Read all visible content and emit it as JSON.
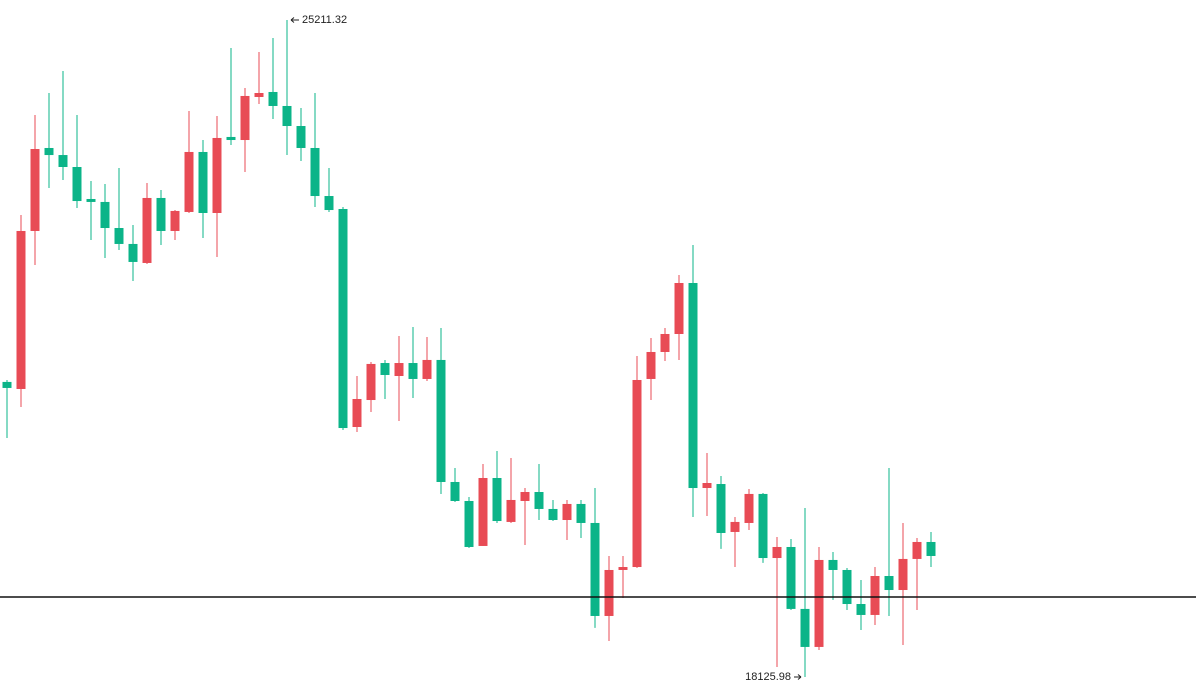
{
  "chart_data": {
    "type": "candlestick",
    "open": [
      21308,
      21232,
      22936,
      23831,
      23755,
      23626,
      23281,
      23249,
      22968,
      22796,
      22591,
      23292,
      22936,
      23141,
      23788,
      23130,
      23950,
      23917,
      24381,
      24435,
      24284,
      24068,
      23831,
      23313,
      23173,
      20822,
      21113,
      21512,
      21372,
      21512,
      21340,
      21545,
      20229,
      20024,
      19539,
      20272,
      19798,
      20024,
      20121,
      19938,
      19819,
      19992,
      19787,
      18784,
      19280,
      19312,
      21340,
      21631,
      21825,
      22375,
      20164,
      20207,
      19690,
      19787,
      20100,
      19409,
      19528,
      18860,
      18450,
      19388,
      19280,
      18913,
      18795,
      19215,
      19064,
      19399,
      19582
    ],
    "high": [
      21329,
      23108,
      24187,
      24424,
      24661,
      24187,
      23475,
      23443,
      23615,
      23001,
      23454,
      23378,
      23162,
      24230,
      23917,
      24176,
      24909,
      24478,
      24866,
      25017,
      25211.32,
      24262,
      24424,
      23615,
      23195,
      21372,
      21523,
      21545,
      21804,
      21901,
      21793,
      21890,
      20380,
      20067,
      20423,
      20563,
      20488,
      20164,
      20423,
      20035,
      20035,
      20035,
      20164,
      19431,
      19431,
      21588,
      21782,
      21890,
      22461,
      22785,
      20542,
      20294,
      19852,
      20154,
      20110,
      19636,
      19614,
      19949,
      19528,
      19474,
      19302,
      19172,
      19312,
      20380,
      19787,
      19625,
      19690
    ],
    "low": [
      20704,
      21038,
      22569,
      23400,
      23486,
      23184,
      22839,
      22645,
      22731,
      22397,
      22580,
      22785,
      22839,
      23130,
      22860,
      22656,
      23863,
      23572,
      24305,
      24144,
      23755,
      23691,
      23195,
      23141,
      20790,
      20768,
      20984,
      21124,
      20887,
      21135,
      21318,
      20100,
      20013,
      19517,
      19539,
      19787,
      19787,
      19550,
      19819,
      19808,
      19604,
      19625,
      18655,
      18514,
      18978,
      19302,
      21113,
      21534,
      21545,
      19852,
      19862,
      19507,
      19312,
      19711,
      19356,
      18234,
      18849,
      18125.98,
      18417,
      18957,
      18849,
      18633,
      18687,
      18784,
      18471,
      18849,
      19312
    ],
    "close": [
      21243,
      22936,
      23820,
      23755,
      23626,
      23259,
      23249,
      22968,
      22796,
      22602,
      23292,
      22936,
      23152,
      23788,
      23130,
      23939,
      23917,
      24392,
      24424,
      24284,
      24068,
      23831,
      23313,
      23162,
      20811,
      21124,
      21502,
      21383,
      21512,
      21340,
      21545,
      20229,
      20024,
      19528,
      20272,
      19808,
      20035,
      20121,
      19938,
      19819,
      19992,
      19787,
      18784,
      19280,
      19312,
      21329,
      21631,
      21825,
      22375,
      20164,
      20218,
      19679,
      19798,
      20100,
      19409,
      19528,
      18860,
      18450,
      19388,
      19280,
      18913,
      18795,
      19215,
      19064,
      19399,
      19582,
      19431
    ],
    "up_color": "#e84b55",
    "down_color": "#0bb488",
    "hline": 18989,
    "hline_color": "#111111",
    "ylim": [
      18018,
      25427
    ]
  }
}
